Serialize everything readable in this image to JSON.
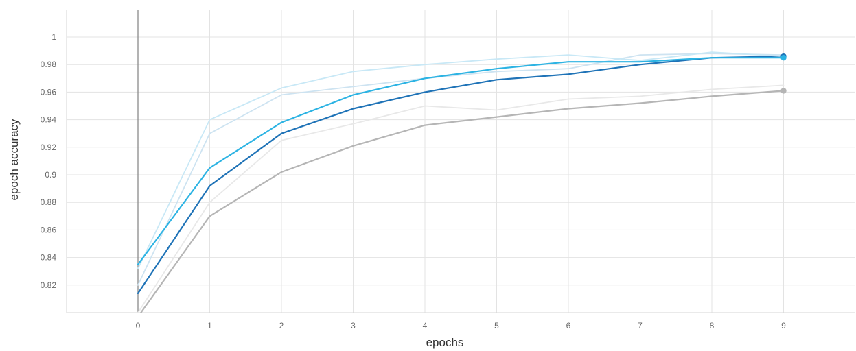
{
  "chart_data": {
    "type": "line",
    "title": "",
    "xlabel": "epochs",
    "ylabel": "epoch accuracy",
    "xlim": [
      -1,
      10
    ],
    "ylim": [
      0.8,
      1.02
    ],
    "x_ticks": [
      0,
      1,
      2,
      3,
      4,
      5,
      6,
      7,
      8,
      9
    ],
    "y_ticks": [
      0.82,
      0.84,
      0.86,
      0.88,
      0.9,
      0.92,
      0.94,
      0.96,
      0.98,
      1
    ],
    "y_tick_labels": [
      "0.82",
      "0.84",
      "0.86",
      "0.88",
      "0.9",
      "0.92",
      "0.94",
      "0.96",
      "0.98",
      "1"
    ],
    "x_tick_labels": [
      "0",
      "1",
      "2",
      "3",
      "4",
      "5",
      "6",
      "7",
      "8",
      "9"
    ],
    "grid": true,
    "legend": "none",
    "series": [
      {
        "color": "#e8e8e8",
        "emphasis": "raw",
        "x": [
          0,
          1,
          2,
          3,
          4,
          5,
          6,
          7,
          8,
          9
        ],
        "values": [
          0.8,
          0.88,
          0.925,
          0.937,
          0.95,
          0.947,
          0.955,
          0.957,
          0.962,
          0.965
        ]
      },
      {
        "color": "#b5b5b5",
        "emphasis": "smoothed",
        "end_marker": true,
        "x": [
          0,
          1,
          2,
          3,
          4,
          5,
          6,
          7,
          8,
          9
        ],
        "values": [
          0.797,
          0.87,
          0.902,
          0.921,
          0.936,
          0.942,
          0.948,
          0.952,
          0.957,
          0.961
        ]
      },
      {
        "color": "#cde3f1",
        "emphasis": "raw",
        "x": [
          0,
          1,
          2,
          3,
          4,
          5,
          6,
          7,
          8,
          9
        ],
        "values": [
          0.82,
          0.93,
          0.958,
          0.964,
          0.97,
          0.975,
          0.977,
          0.987,
          0.988,
          0.987
        ]
      },
      {
        "color": "#1f73b7",
        "emphasis": "smoothed",
        "end_marker": true,
        "x": [
          0,
          1,
          2,
          3,
          4,
          5,
          6,
          7,
          8,
          9
        ],
        "values": [
          0.814,
          0.892,
          0.93,
          0.948,
          0.96,
          0.969,
          0.973,
          0.98,
          0.985,
          0.986
        ]
      },
      {
        "color": "#c8e8f6",
        "emphasis": "raw",
        "x": [
          0,
          1,
          2,
          3,
          4,
          5,
          6,
          7,
          8,
          9
        ],
        "values": [
          0.832,
          0.94,
          0.963,
          0.975,
          0.98,
          0.984,
          0.987,
          0.983,
          0.989,
          0.986
        ]
      },
      {
        "color": "#2cb3e3",
        "emphasis": "smoothed",
        "end_marker": true,
        "x": [
          0,
          1,
          2,
          3,
          4,
          5,
          6,
          7,
          8,
          9
        ],
        "values": [
          0.835,
          0.905,
          0.938,
          0.958,
          0.97,
          0.977,
          0.982,
          0.982,
          0.985,
          0.985
        ]
      }
    ]
  }
}
